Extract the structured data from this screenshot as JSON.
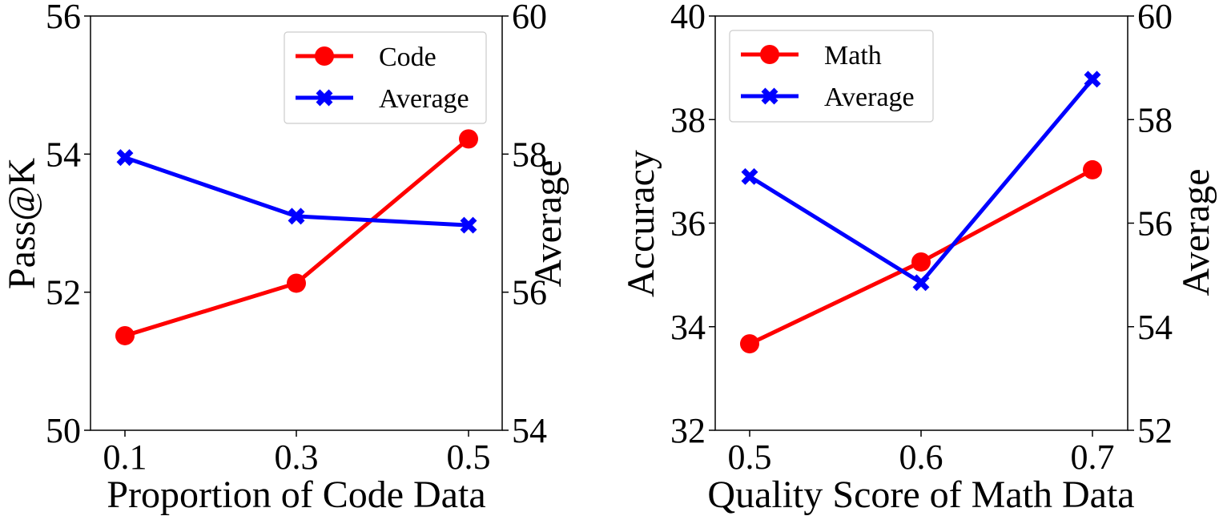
{
  "chart_data": [
    {
      "type": "line",
      "x": [
        "0.1",
        "0.3",
        "0.5"
      ],
      "xlabel": "Proportion of Code Data",
      "ylabel": "Pass@K",
      "ylabel_right": "Average",
      "ylim": [
        50,
        56
      ],
      "ylim_right": [
        54,
        60
      ],
      "yticks": [
        "50",
        "52",
        "54",
        "56"
      ],
      "yticks_right": [
        "54",
        "56",
        "58",
        "60"
      ],
      "legend_position": "upper right",
      "series": [
        {
          "name": "Code",
          "axis": "left",
          "color": "#ff0000",
          "marker": "circle",
          "values": [
            51.37,
            52.13,
            54.22
          ]
        },
        {
          "name": "Average",
          "axis": "right",
          "color": "#0000ff",
          "marker": "x",
          "values": [
            57.95,
            57.1,
            56.97
          ]
        }
      ]
    },
    {
      "type": "line",
      "x": [
        "0.5",
        "0.6",
        "0.7"
      ],
      "xlabel": "Quality Score of Math Data",
      "ylabel": "Accuracy",
      "ylabel_right": "Average",
      "ylim": [
        32,
        40
      ],
      "ylim_right": [
        52,
        60
      ],
      "yticks": [
        "32",
        "34",
        "36",
        "38",
        "40"
      ],
      "yticks_right": [
        "52",
        "54",
        "56",
        "58",
        "60"
      ],
      "legend_position": "upper left",
      "series": [
        {
          "name": "Math",
          "axis": "left",
          "color": "#ff0000",
          "marker": "circle",
          "values": [
            33.67,
            35.25,
            37.03
          ]
        },
        {
          "name": "Average",
          "axis": "right",
          "color": "#0000ff",
          "marker": "x",
          "values": [
            56.9,
            54.85,
            58.78
          ]
        }
      ]
    }
  ]
}
